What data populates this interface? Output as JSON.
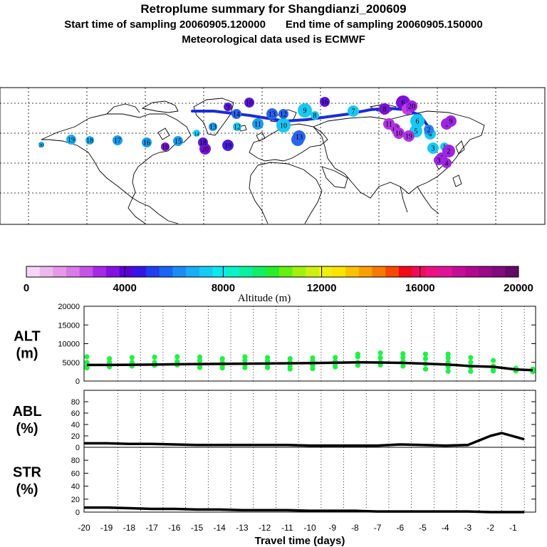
{
  "header": {
    "title": "Retroplume summary for Shangdianzi_200609",
    "start_time": "Start time of sampling 20060905.120000",
    "end_time": "End time of sampling 20060905.150000",
    "met_data": "Meteorological data used is ECMWF"
  },
  "colorbar": {
    "label": "Altitude (m)",
    "ticks": [
      "0",
      "4000",
      "8000",
      "12000",
      "16000",
      "20000"
    ],
    "min": 0,
    "max": 20000,
    "colors": [
      "#f6d6f6",
      "#eeb8ee",
      "#e59ae8",
      "#d97ae6",
      "#c553e8",
      "#a728e6",
      "#8610e0",
      "#5a00d8",
      "#3414e6",
      "#1e3ef0",
      "#1a64f4",
      "#1b8cf6",
      "#19aef6",
      "#12ccf4",
      "#0ae8f2",
      "#0af2c8",
      "#0af0a0",
      "#10ee68",
      "#26ee2a",
      "#64f010",
      "#a2f010",
      "#cef010",
      "#eef010",
      "#fae400",
      "#f8c400",
      "#f8a000",
      "#f87800",
      "#f84800",
      "#f00a1c",
      "#f00a5a",
      "#ee1080",
      "#e0129a",
      "#c80c9a",
      "#b20890",
      "#9a0888",
      "#820a7a",
      "#640a68"
    ]
  },
  "map": {
    "centroids": [
      {
        "label": "20",
        "color": "#1fb1f2"
      },
      {
        "label": "19",
        "color": "#1fb1f2"
      },
      {
        "label": "18",
        "color": "#1fb1f2"
      },
      {
        "label": "17",
        "color": "#1c9cf0"
      },
      {
        "label": "16",
        "color": "#1c9cf0"
      },
      {
        "label": "15",
        "color": "#1c9cf0"
      },
      {
        "label": "14",
        "color": "#19c8f2"
      },
      {
        "label": "13",
        "color": "#1c9cf0"
      },
      {
        "label": "12",
        "color": "#19c8f2"
      },
      {
        "label": "11",
        "color": "#1c9cf0"
      },
      {
        "label": "10",
        "color": "#19c8f2"
      },
      {
        "label": "9",
        "color": "#19c8f2"
      },
      {
        "label": "8",
        "color": "#19c8f2"
      },
      {
        "label": "7",
        "color": "#19c8f2"
      },
      {
        "label": "6",
        "color": "#19c8f2"
      },
      {
        "label": "5",
        "color": "#19c8f2"
      },
      {
        "label": "4",
        "color": "#19c8f2"
      },
      {
        "label": "3",
        "color": "#19c8f2"
      },
      {
        "label": "2",
        "color": "#2a7ff0"
      },
      {
        "label": "1",
        "color": "#19c8f2"
      },
      {
        "label": "19",
        "color": "#4a1ee0"
      },
      {
        "label": "20",
        "color": "#7a10d8"
      },
      {
        "label": "18",
        "color": "#5a18dc"
      },
      {
        "label": "16",
        "color": "#7a10d8"
      },
      {
        "label": "14",
        "color": "#2a64f0"
      },
      {
        "label": "13",
        "color": "#2a64f0"
      },
      {
        "label": "12",
        "color": "#2a64f0"
      },
      {
        "label": "11",
        "color": "#2a64f0"
      },
      {
        "label": "10",
        "color": "#5a18dc"
      },
      {
        "label": "6",
        "color": "#7a10d8"
      },
      {
        "label": "7",
        "color": "#c33ce8"
      },
      {
        "label": "8",
        "color": "#7a10d8"
      },
      {
        "label": "5",
        "color": "#9b25e0"
      },
      {
        "label": "4",
        "color": "#9b25e0"
      },
      {
        "label": "3",
        "color": "#9b25e0"
      },
      {
        "label": "2",
        "color": "#9b25e0"
      },
      {
        "label": "1",
        "color": "#9b25e0"
      },
      {
        "label": "20",
        "color": "#9b25e0"
      },
      {
        "label": "19",
        "color": "#b033e4"
      },
      {
        "label": "13",
        "color": "#b033e4"
      },
      {
        "label": "10",
        "color": "#b033e4"
      },
      {
        "label": "9",
        "color": "#9b25e0"
      },
      {
        "label": "11",
        "color": "#b033e4"
      },
      {
        "label": "16",
        "color": "#5a18dc"
      },
      {
        "label": "13",
        "color": "#2a64f0"
      },
      {
        "label": "9",
        "color": "#5a18dc"
      }
    ]
  },
  "chart_data": [
    {
      "type": "line+scatter",
      "name": "ALT",
      "ylabel_line1": "ALT",
      "ylabel_line2": "(m)",
      "ylim": [
        0,
        20000
      ],
      "yticks": [
        "20000",
        "15000",
        "10000",
        "5000",
        "0"
      ],
      "x": [
        -19.875,
        -18.875,
        -17.875,
        -16.875,
        -15.875,
        -14.875,
        -13.875,
        -12.875,
        -11.875,
        -10.875,
        -9.875,
        -8.875,
        -7.875,
        -6.875,
        -5.875,
        -4.875,
        -3.875,
        -2.875,
        -1.875,
        -0.875,
        -0.125
      ],
      "mean": [
        4300,
        4300,
        4350,
        4400,
        4500,
        4550,
        4600,
        4650,
        4700,
        4750,
        4800,
        4900,
        5000,
        4950,
        4850,
        4650,
        4400,
        4000,
        3800,
        3100,
        2900
      ],
      "clusters": [
        {
          "x": -19.875,
          "values": [
            6500,
            5000,
            4000,
            3500
          ]
        },
        {
          "x": -18.875,
          "values": [
            6000,
            5000,
            3800
          ]
        },
        {
          "x": -17.875,
          "values": [
            6300,
            5000,
            4000
          ]
        },
        {
          "x": -16.875,
          "values": [
            6400,
            5000,
            4200
          ]
        },
        {
          "x": -15.875,
          "values": [
            6500,
            5200,
            4300
          ]
        },
        {
          "x": -14.875,
          "values": [
            6400,
            5500,
            4400,
            3600
          ]
        },
        {
          "x": -13.875,
          "values": [
            6000,
            5000,
            4200,
            3500
          ]
        },
        {
          "x": -12.875,
          "values": [
            6500,
            5500,
            4500,
            3600
          ]
        },
        {
          "x": -11.875,
          "values": [
            6300,
            5400,
            4400,
            3600
          ]
        },
        {
          "x": -10.875,
          "values": [
            6000,
            5000,
            4000,
            3200
          ]
        },
        {
          "x": -9.875,
          "values": [
            6200,
            5300,
            4200,
            3300
          ]
        },
        {
          "x": -8.875,
          "values": [
            6300,
            5200,
            4500,
            3800
          ]
        },
        {
          "x": -7.875,
          "values": [
            7200,
            6500,
            5000,
            4200
          ]
        },
        {
          "x": -6.875,
          "values": [
            7500,
            6200,
            5000,
            4300
          ]
        },
        {
          "x": -5.875,
          "values": [
            7300,
            6300,
            5200,
            4000
          ]
        },
        {
          "x": -4.875,
          "values": [
            7200,
            6000,
            4600,
            3200
          ]
        },
        {
          "x": -3.875,
          "values": [
            7200,
            6200,
            5000,
            3800,
            2600
          ]
        },
        {
          "x": -2.875,
          "values": [
            6300,
            5000,
            3800,
            2600
          ]
        },
        {
          "x": -1.875,
          "values": [
            5500,
            4000,
            3000,
            2700
          ]
        },
        {
          "x": -0.875,
          "values": [
            3400,
            3000,
            2700
          ]
        },
        {
          "x": -0.125,
          "values": [
            3200,
            2800,
            2500
          ]
        }
      ],
      "point_color": "#22f044"
    },
    {
      "type": "line",
      "name": "ABL",
      "ylabel_line1": "ABL",
      "ylabel_line2": "(%)",
      "ylim": [
        0,
        100
      ],
      "yticks": [
        "80",
        "60",
        "40",
        "20",
        "0"
      ],
      "x": [
        -20,
        -19,
        -18,
        -17,
        -16,
        -15,
        -14,
        -13,
        -12,
        -11,
        -10,
        -9,
        -8,
        -7,
        -6,
        -5,
        -4,
        -3,
        -2,
        -1.5,
        -0.5
      ],
      "values": [
        7,
        7,
        6,
        6,
        5,
        4,
        4,
        4,
        4,
        4,
        3,
        3,
        3,
        3,
        5,
        4,
        3,
        4,
        20,
        25,
        14
      ]
    },
    {
      "type": "line",
      "name": "STR",
      "ylabel_line1": "STR",
      "ylabel_line2": "(%)",
      "ylim": [
        0,
        100
      ],
      "yticks": [
        "80",
        "60",
        "40",
        "20",
        "0"
      ],
      "x": [
        -20,
        -19,
        -18,
        -17,
        -16,
        -15,
        -14,
        -13,
        -12,
        -11,
        -10,
        -9,
        -8,
        -7,
        -6,
        -5,
        -4,
        -3,
        -2,
        -1,
        -0.5
      ],
      "values": [
        7,
        7,
        6,
        5,
        5,
        4,
        4,
        3,
        3,
        3,
        2,
        2,
        2,
        1,
        1,
        1,
        1,
        1,
        0,
        0,
        0
      ]
    },
    {
      "type": "axis",
      "name": "travel-time-axis",
      "xlabel": "Travel time (days)",
      "xlim": [
        -20,
        0
      ],
      "xticks": [
        "-20",
        "-19",
        "-18",
        "-17",
        "-16",
        "-15",
        "-14",
        "-13",
        "-12",
        "-11",
        "-10",
        "-9",
        "-8",
        "-7",
        "-6",
        "-5",
        "-4",
        "-3",
        "-2",
        "-1"
      ]
    }
  ]
}
